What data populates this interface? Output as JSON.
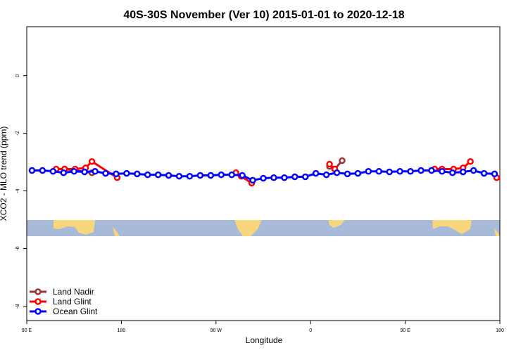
{
  "chart_data": {
    "type": "line",
    "title": "40S-30S November (Ver 10)   2015-01-01 to 2020-12-18",
    "x_label": "Longitude",
    "y_label": "XCO2 - MLO trend (ppm)",
    "xlim": [
      90,
      540
    ],
    "xticks": [
      {
        "value": 90,
        "label": "90 E"
      },
      {
        "value": 180,
        "label": "180"
      },
      {
        "value": 270,
        "label": "90 W"
      },
      {
        "value": 360,
        "label": "0"
      },
      {
        "value": 450,
        "label": "90 E"
      },
      {
        "value": 540,
        "label": "180"
      }
    ],
    "ylim": [
      -8.5,
      1.7
    ],
    "yticks": [
      0,
      -2,
      -4,
      -6,
      -8
    ],
    "legend": "bottomleft",
    "series": [
      {
        "name": "Land Nadir",
        "color": "#993333",
        "x": [
          126,
          152,
          250,
          378,
          383,
          390,
          450,
          505
        ],
        "values": [
          -3.24,
          -3.37,
          null,
          -3.15,
          -3.24,
          -2.95,
          null,
          -3.34
        ]
      },
      {
        "name": "Land Glint",
        "color": "#ff0000",
        "x": [
          118,
          126,
          136,
          146,
          152,
          176,
          230,
          289,
          294,
          304,
          340,
          378,
          383,
          430,
          478,
          485,
          496,
          505,
          512,
          525,
          537
        ],
        "values": [
          -3.24,
          -3.24,
          -3.24,
          -3.2,
          -2.98,
          -3.54,
          null,
          -3.37,
          -3.49,
          -3.73,
          null,
          -3.07,
          -3.24,
          null,
          -3.24,
          -3.24,
          -3.24,
          -3.2,
          -2.98,
          null,
          -3.54
        ]
      },
      {
        "name": "Ocean Glint",
        "color": "#0000ff",
        "x": [
          95,
          105,
          115,
          125,
          135,
          145,
          155,
          165,
          175,
          185,
          195,
          205,
          215,
          225,
          235,
          245,
          255,
          265,
          275,
          285,
          295,
          305,
          315,
          325,
          335,
          345,
          355,
          365,
          375,
          385,
          395,
          405,
          415,
          425,
          435,
          445,
          455,
          465,
          475,
          485,
          495,
          505,
          515,
          525,
          535
        ],
        "values": [
          -3.29,
          -3.29,
          -3.32,
          -3.37,
          -3.32,
          -3.34,
          -3.32,
          -3.39,
          -3.41,
          -3.39,
          -3.41,
          -3.44,
          -3.44,
          -3.46,
          -3.49,
          -3.49,
          -3.46,
          -3.46,
          -3.44,
          -3.44,
          -3.46,
          -3.63,
          -3.56,
          -3.54,
          -3.54,
          -3.51,
          -3.51,
          -3.39,
          -3.44,
          -3.37,
          -3.41,
          -3.39,
          -3.32,
          -3.32,
          -3.34,
          -3.32,
          -3.32,
          -3.29,
          -3.29,
          -3.32,
          -3.37,
          -3.34,
          -3.29,
          -3.39,
          -3.41
        ]
      }
    ]
  }
}
